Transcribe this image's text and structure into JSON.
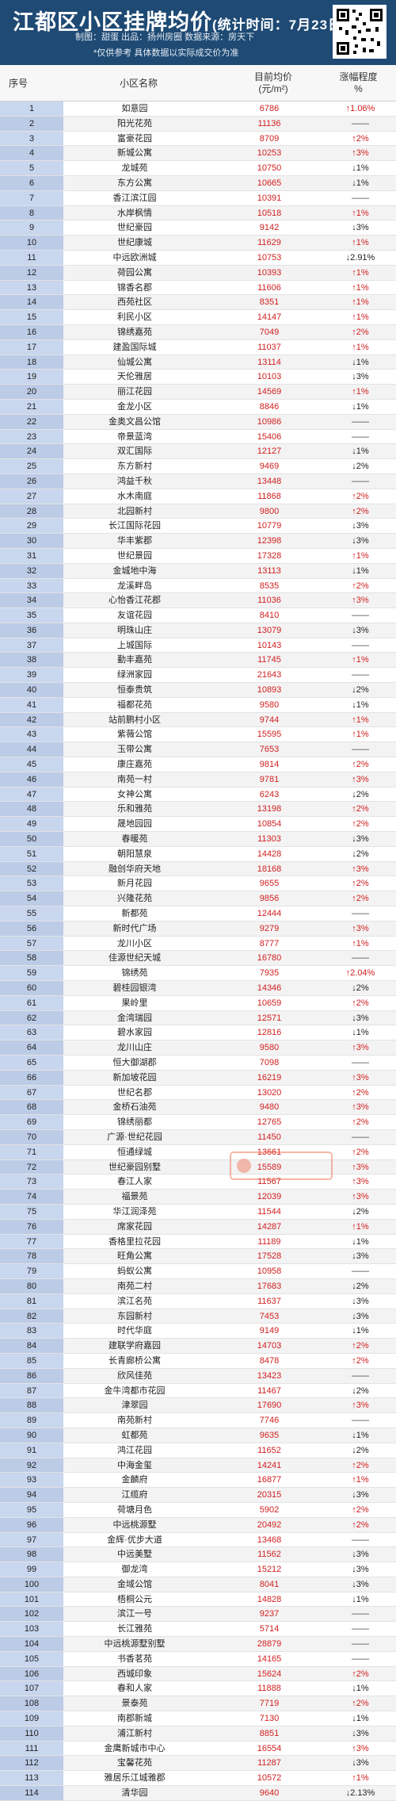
{
  "header": {
    "title": "江都区小区挂牌均价",
    "stat_time": "(统计时间：7月23日)",
    "credits": "制图：甜蛋    出品：扬州房圈    数据来源：房天下",
    "notice": "*仅供参考 具体数据以实际成交价为准"
  },
  "columns": {
    "index": "序号",
    "name": "小区名称",
    "price_line1": "目前均价",
    "price_line2": "(元/m²)",
    "change_line1": "涨幅程度",
    "change_line2": "%"
  },
  "watermark_text": "扬州房圈",
  "stamp": "房感说说",
  "colors": {
    "header_bg": "#1e4a74",
    "up": "#d22020",
    "index_bg": "#c8d6ee"
  },
  "rows": [
    {
      "i": "1",
      "name": "如意园",
      "price": "6786",
      "change": "↑1.06%",
      "dir": "up"
    },
    {
      "i": "2",
      "name": "阳光花苑",
      "price": "11136",
      "change": "——",
      "dir": "flat"
    },
    {
      "i": "3",
      "name": "富豪花园",
      "price": "8709",
      "change": "↑2%",
      "dir": "up"
    },
    {
      "i": "4",
      "name": "新城公寓",
      "price": "10253",
      "change": "↑3%",
      "dir": "up"
    },
    {
      "i": "5",
      "name": "龙城苑",
      "price": "10750",
      "change": "↓1%",
      "dir": "down"
    },
    {
      "i": "6",
      "name": "东方公寓",
      "price": "10665",
      "change": "↓1%",
      "dir": "down"
    },
    {
      "i": "7",
      "name": "香江滨江园",
      "price": "10391",
      "change": "——",
      "dir": "flat"
    },
    {
      "i": "8",
      "name": "水岸枫情",
      "price": "10518",
      "change": "↑1%",
      "dir": "up"
    },
    {
      "i": "9",
      "name": "世纪豪园",
      "price": "9142",
      "change": "↓3%",
      "dir": "down"
    },
    {
      "i": "10",
      "name": "世纪康城",
      "price": "11629",
      "change": "↑1%",
      "dir": "up"
    },
    {
      "i": "11",
      "name": "中远欧洲城",
      "price": "10753",
      "change": "↓2.91%",
      "dir": "down"
    },
    {
      "i": "12",
      "name": "荷园公寓",
      "price": "10393",
      "change": "↑1%",
      "dir": "up"
    },
    {
      "i": "13",
      "name": "锦香名郡",
      "price": "11606",
      "change": "↑1%",
      "dir": "up"
    },
    {
      "i": "14",
      "name": "西苑社区",
      "price": "8351",
      "change": "↑1%",
      "dir": "up"
    },
    {
      "i": "15",
      "name": "利民小区",
      "price": "14147",
      "change": "↑1%",
      "dir": "up"
    },
    {
      "i": "16",
      "name": "锦绣嘉苑",
      "price": "7049",
      "change": "↑2%",
      "dir": "up"
    },
    {
      "i": "17",
      "name": "建盈国际城",
      "price": "11037",
      "change": "↑1%",
      "dir": "up"
    },
    {
      "i": "18",
      "name": "仙城公寓",
      "price": "13114",
      "change": "↓1%",
      "dir": "down"
    },
    {
      "i": "19",
      "name": "天伦雅居",
      "price": "10103",
      "change": "↓3%",
      "dir": "down"
    },
    {
      "i": "20",
      "name": "丽江花园",
      "price": "14569",
      "change": "↑1%",
      "dir": "up"
    },
    {
      "i": "21",
      "name": "金龙小区",
      "price": "8846",
      "change": "↓1%",
      "dir": "down"
    },
    {
      "i": "22",
      "name": "金奥文昌公馆",
      "price": "10986",
      "change": "——",
      "dir": "flat"
    },
    {
      "i": "23",
      "name": "帝景蓝湾",
      "price": "15406",
      "change": "——",
      "dir": "flat"
    },
    {
      "i": "24",
      "name": "双汇国际",
      "price": "12127",
      "change": "↓1%",
      "dir": "down"
    },
    {
      "i": "25",
      "name": "东方新村",
      "price": "9469",
      "change": "↓2%",
      "dir": "down"
    },
    {
      "i": "26",
      "name": "鸿益千秋",
      "price": "13448",
      "change": "——",
      "dir": "flat"
    },
    {
      "i": "27",
      "name": "水木南庭",
      "price": "11868",
      "change": "↑2%",
      "dir": "up"
    },
    {
      "i": "28",
      "name": "北园新村",
      "price": "9800",
      "change": "↑2%",
      "dir": "up"
    },
    {
      "i": "29",
      "name": "长江国际花园",
      "price": "10779",
      "change": "↓3%",
      "dir": "down"
    },
    {
      "i": "30",
      "name": "华丰紫郡",
      "price": "12398",
      "change": "↓3%",
      "dir": "down"
    },
    {
      "i": "31",
      "name": "世纪景园",
      "price": "17328",
      "change": "↑1%",
      "dir": "up"
    },
    {
      "i": "32",
      "name": "金城地中海",
      "price": "13113",
      "change": "↓1%",
      "dir": "down"
    },
    {
      "i": "33",
      "name": "龙溪畔岛",
      "price": "8535",
      "change": "↑2%",
      "dir": "up"
    },
    {
      "i": "34",
      "name": "心怡香江花郡",
      "price": "11036",
      "change": "↑3%",
      "dir": "up"
    },
    {
      "i": "35",
      "name": "友谊花园",
      "price": "8410",
      "change": "——",
      "dir": "flat"
    },
    {
      "i": "36",
      "name": "明珠山庄",
      "price": "13079",
      "change": "↓3%",
      "dir": "down"
    },
    {
      "i": "37",
      "name": "上城国际",
      "price": "10143",
      "change": "——",
      "dir": "flat"
    },
    {
      "i": "38",
      "name": "勤丰嘉苑",
      "price": "11745",
      "change": "↑1%",
      "dir": "up"
    },
    {
      "i": "39",
      "name": "绿洲家园",
      "price": "21643",
      "change": "——",
      "dir": "flat"
    },
    {
      "i": "40",
      "name": "恒泰贵筑",
      "price": "10893",
      "change": "↓2%",
      "dir": "down"
    },
    {
      "i": "41",
      "name": "福都花苑",
      "price": "9580",
      "change": "↓1%",
      "dir": "down"
    },
    {
      "i": "42",
      "name": "站前鹏村小区",
      "price": "9744",
      "change": "↑1%",
      "dir": "up"
    },
    {
      "i": "43",
      "name": "紫薇公馆",
      "price": "15595",
      "change": "↑1%",
      "dir": "up"
    },
    {
      "i": "44",
      "name": "玉带公寓",
      "price": "7653",
      "change": "——",
      "dir": "flat"
    },
    {
      "i": "45",
      "name": "康庄嘉苑",
      "price": "9814",
      "change": "↑2%",
      "dir": "up"
    },
    {
      "i": "46",
      "name": "南苑一村",
      "price": "9781",
      "change": "↑3%",
      "dir": "up"
    },
    {
      "i": "47",
      "name": "女神公寓",
      "price": "6243",
      "change": "↓2%",
      "dir": "down"
    },
    {
      "i": "48",
      "name": "乐和雅苑",
      "price": "13198",
      "change": "↑2%",
      "dir": "up"
    },
    {
      "i": "49",
      "name": "晟地园园",
      "price": "10854",
      "change": "↑2%",
      "dir": "up"
    },
    {
      "i": "50",
      "name": "春暖苑",
      "price": "11303",
      "change": "↓3%",
      "dir": "down"
    },
    {
      "i": "51",
      "name": "朝阳慧泉",
      "price": "14428",
      "change": "↓2%",
      "dir": "down"
    },
    {
      "i": "52",
      "name": "融创华府天地",
      "price": "18168",
      "change": "↑3%",
      "dir": "up"
    },
    {
      "i": "53",
      "name": "新月花园",
      "price": "9655",
      "change": "↑2%",
      "dir": "up"
    },
    {
      "i": "54",
      "name": "兴隆花苑",
      "price": "9856",
      "change": "↑2%",
      "dir": "up"
    },
    {
      "i": "55",
      "name": "新都苑",
      "price": "12444",
      "change": "——",
      "dir": "flat"
    },
    {
      "i": "56",
      "name": "新时代广场",
      "price": "9279",
      "change": "↑3%",
      "dir": "up"
    },
    {
      "i": "57",
      "name": "龙川小区",
      "price": "8777",
      "change": "↑1%",
      "dir": "up"
    },
    {
      "i": "58",
      "name": "佳源世纪天城",
      "price": "16780",
      "change": "——",
      "dir": "flat"
    },
    {
      "i": "59",
      "name": "锦绣苑",
      "price": "7935",
      "change": "↑2.04%",
      "dir": "up"
    },
    {
      "i": "60",
      "name": "碧桂园银湾",
      "price": "14346",
      "change": "↓2%",
      "dir": "down"
    },
    {
      "i": "61",
      "name": "果岭里",
      "price": "10659",
      "change": "↑2%",
      "dir": "up"
    },
    {
      "i": "62",
      "name": "金湾瑞园",
      "price": "12571",
      "change": "↓3%",
      "dir": "down"
    },
    {
      "i": "63",
      "name": "碧水家园",
      "price": "12816",
      "change": "↓1%",
      "dir": "down"
    },
    {
      "i": "64",
      "name": "龙川山庄",
      "price": "9580",
      "change": "↑3%",
      "dir": "up"
    },
    {
      "i": "65",
      "name": "恒大御湖郡",
      "price": "7098",
      "change": "——",
      "dir": "flat"
    },
    {
      "i": "66",
      "name": "新加坡花园",
      "price": "16219",
      "change": "↑3%",
      "dir": "up"
    },
    {
      "i": "67",
      "name": "世纪名郡",
      "price": "13020",
      "change": "↑2%",
      "dir": "up"
    },
    {
      "i": "68",
      "name": "金桥石油苑",
      "price": "9480",
      "change": "↑3%",
      "dir": "up"
    },
    {
      "i": "69",
      "name": "锦绣丽都",
      "price": "12765",
      "change": "↑2%",
      "dir": "up"
    },
    {
      "i": "70",
      "name": "广源·世纪花园",
      "price": "11450",
      "change": "——",
      "dir": "flat"
    },
    {
      "i": "71",
      "name": "恒通绿城",
      "price": "13661",
      "change": "↑2%",
      "dir": "up"
    },
    {
      "i": "72",
      "name": "世纪豪园别墅",
      "price": "15589",
      "change": "↑3%",
      "dir": "up"
    },
    {
      "i": "73",
      "name": "春江人家",
      "price": "11567",
      "change": "↑3%",
      "dir": "up"
    },
    {
      "i": "74",
      "name": "福景苑",
      "price": "12039",
      "change": "↑3%",
      "dir": "up"
    },
    {
      "i": "75",
      "name": "华江润泽苑",
      "price": "11544",
      "change": "↓2%",
      "dir": "down"
    },
    {
      "i": "76",
      "name": "席家花园",
      "price": "14287",
      "change": "↑1%",
      "dir": "up"
    },
    {
      "i": "77",
      "name": "香格里拉花园",
      "price": "11189",
      "change": "↓1%",
      "dir": "down"
    },
    {
      "i": "78",
      "name": "旺角公寓",
      "price": "17528",
      "change": "↓3%",
      "dir": "down"
    },
    {
      "i": "79",
      "name": "蚂蚁公寓",
      "price": "10958",
      "change": "——",
      "dir": "flat"
    },
    {
      "i": "80",
      "name": "南苑二村",
      "price": "17683",
      "change": "↓2%",
      "dir": "down"
    },
    {
      "i": "81",
      "name": "滨江名苑",
      "price": "11637",
      "change": "↓3%",
      "dir": "down"
    },
    {
      "i": "82",
      "name": "东园新村",
      "price": "7453",
      "change": "↓3%",
      "dir": "down"
    },
    {
      "i": "83",
      "name": "时代华庭",
      "price": "9149",
      "change": "↓1%",
      "dir": "down"
    },
    {
      "i": "84",
      "name": "建联学府嘉园",
      "price": "14703",
      "change": "↑2%",
      "dir": "up"
    },
    {
      "i": "85",
      "name": "长青廊桥公寓",
      "price": "8478",
      "change": "↑2%",
      "dir": "up"
    },
    {
      "i": "86",
      "name": "欣风佳苑",
      "price": "13423",
      "change": "——",
      "dir": "flat"
    },
    {
      "i": "87",
      "name": "金牛湾都市花园",
      "price": "11467",
      "change": "↓2%",
      "dir": "down"
    },
    {
      "i": "88",
      "name": "津翠园",
      "price": "17690",
      "change": "↑3%",
      "dir": "up"
    },
    {
      "i": "89",
      "name": "南苑新村",
      "price": "7746",
      "change": "——",
      "dir": "flat"
    },
    {
      "i": "90",
      "name": "虹都苑",
      "price": "9635",
      "change": "↓1%",
      "dir": "down"
    },
    {
      "i": "91",
      "name": "鸿江花园",
      "price": "11652",
      "change": "↓2%",
      "dir": "down"
    },
    {
      "i": "92",
      "name": "中海金玺",
      "price": "14241",
      "change": "↑2%",
      "dir": "up"
    },
    {
      "i": "93",
      "name": "金麟府",
      "price": "16877",
      "change": "↑1%",
      "dir": "up"
    },
    {
      "i": "94",
      "name": "江缆府",
      "price": "20315",
      "change": "↓3%",
      "dir": "down"
    },
    {
      "i": "95",
      "name": "荷塘月色",
      "price": "5902",
      "change": "↑2%",
      "dir": "up"
    },
    {
      "i": "96",
      "name": "中远桃源墅",
      "price": "20492",
      "change": "↑2%",
      "dir": "up"
    },
    {
      "i": "97",
      "name": "金辉·优步大道",
      "price": "13468",
      "change": "——",
      "dir": "flat"
    },
    {
      "i": "98",
      "name": "中远美墅",
      "price": "11562",
      "change": "↓3%",
      "dir": "down"
    },
    {
      "i": "99",
      "name": "御龙湾",
      "price": "15212",
      "change": "↓3%",
      "dir": "down"
    },
    {
      "i": "100",
      "name": "金域公馆",
      "price": "8041",
      "change": "↓3%",
      "dir": "down"
    },
    {
      "i": "101",
      "name": "梧桐公元",
      "price": "14828",
      "change": "↓1%",
      "dir": "down"
    },
    {
      "i": "102",
      "name": "滨江一号",
      "price": "9237",
      "change": "——",
      "dir": "flat"
    },
    {
      "i": "103",
      "name": "长江雅苑",
      "price": "5714",
      "change": "——",
      "dir": "flat"
    },
    {
      "i": "104",
      "name": "中远桃源墅别墅",
      "price": "28879",
      "change": "——",
      "dir": "flat"
    },
    {
      "i": "105",
      "name": "书香茗苑",
      "price": "14165",
      "change": "——",
      "dir": "flat"
    },
    {
      "i": "106",
      "name": "西城印象",
      "price": "15624",
      "change": "↑2%",
      "dir": "up"
    },
    {
      "i": "107",
      "name": "春和人家",
      "price": "11888",
      "change": "↓1%",
      "dir": "down"
    },
    {
      "i": "108",
      "name": "景泰苑",
      "price": "7719",
      "change": "↑2%",
      "dir": "up"
    },
    {
      "i": "109",
      "name": "南郡新城",
      "price": "7130",
      "change": "↓1%",
      "dir": "down"
    },
    {
      "i": "110",
      "name": "浦江新村",
      "price": "8851",
      "change": "↓3%",
      "dir": "down"
    },
    {
      "i": "111",
      "name": "金鹰新城市中心",
      "price": "16554",
      "change": "↑3%",
      "dir": "up"
    },
    {
      "i": "112",
      "name": "宝馨花苑",
      "price": "11287",
      "change": "↓3%",
      "dir": "down"
    },
    {
      "i": "113",
      "name": "雅居乐江城雅郡",
      "price": "10572",
      "change": "↑1%",
      "dir": "up"
    },
    {
      "i": "114",
      "name": "清华园",
      "price": "9640",
      "change": "↓2.13%",
      "dir": "down"
    }
  ]
}
